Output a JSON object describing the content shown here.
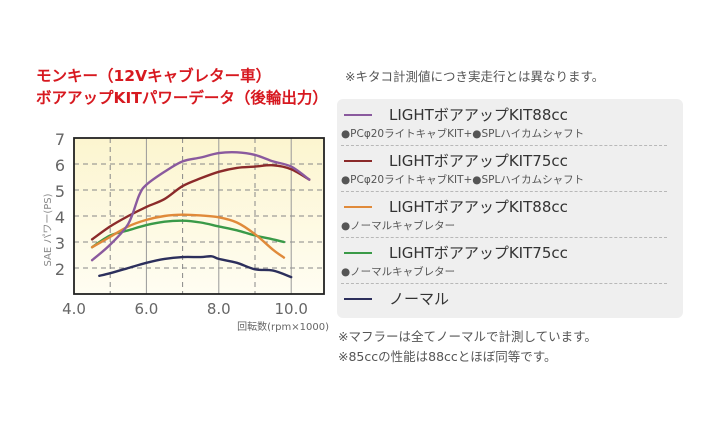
{
  "title": {
    "line1": "モンキー（12Vキャブレター車）",
    "line2": "ボアアップKITパワーデータ（後輪出力）"
  },
  "notes": {
    "top": "※キタコ計測値につき実走行とは異なります。",
    "bottom1": "※マフラーは全てノーマルで計測しています。",
    "bottom2": "※85ccの性能は88ccとほぼ同等です。"
  },
  "legend": [
    {
      "label": "LIGHTボアアップKIT88cc",
      "sub": "●PCφ20ライトキャブKIT+●SPLハイカムシャフト",
      "color": "#8a5a9e"
    },
    {
      "label": "LIGHTボアアップKIT75cc",
      "sub": "●PCφ20ライトキャブKIT+●SPLハイカムシャフト",
      "color": "#8b2a2a"
    },
    {
      "label": "LIGHTボアアップKIT88cc",
      "sub": "●ノーマルキャブレター",
      "color": "#e08a3a"
    },
    {
      "label": "LIGHTボアアップKIT75cc",
      "sub": "●ノーマルキャブレター",
      "color": "#3a9a48"
    },
    {
      "label": "ノーマル",
      "sub": "",
      "color": "#2c2f5c"
    }
  ],
  "chart_data": {
    "type": "line",
    "title": "モンキー（12Vキャブレター車） ボアアップKITパワーデータ（後輪出力）",
    "xlabel": "回転数(rpm×1000)",
    "ylabel": "SAE パワー(PS)",
    "xlim": [
      4.0,
      10.9
    ],
    "ylim": [
      1.0,
      7.0
    ],
    "x_ticks": [
      "4.0",
      "6.0",
      "8.0",
      "10.0"
    ],
    "y_ticks": [
      "2",
      "3",
      "4",
      "5",
      "6",
      "7"
    ],
    "grid": {
      "vertical_solid": [
        6.0,
        8.0,
        10.0
      ],
      "vertical_dashed": [
        5.0,
        7.0,
        9.0
      ],
      "horizontal_dashed": [
        2,
        3,
        4,
        5,
        6
      ]
    },
    "background": "#fdf8da",
    "series": [
      {
        "name": "LIGHTボアアップKIT88cc (PCφ20ライトキャブKIT+SPLハイカムシャフト)",
        "color": "#8a5a9e",
        "x": [
          4.5,
          5.0,
          5.5,
          5.8,
          6.0,
          6.5,
          7.0,
          7.5,
          8.0,
          8.5,
          9.0,
          9.5,
          10.0,
          10.5
        ],
        "y": [
          2.3,
          2.9,
          3.7,
          4.8,
          5.2,
          5.7,
          6.1,
          6.25,
          6.42,
          6.45,
          6.35,
          6.1,
          5.9,
          5.4
        ]
      },
      {
        "name": "LIGHTボアアップKIT75cc (PCφ20ライトキャブKIT+SPLハイカムシャフト)",
        "color": "#8b2a2a",
        "x": [
          4.5,
          5.0,
          5.5,
          6.0,
          6.5,
          7.0,
          7.5,
          8.0,
          8.5,
          9.0,
          9.5,
          10.0,
          10.5
        ],
        "y": [
          3.1,
          3.6,
          4.0,
          4.35,
          4.65,
          5.15,
          5.45,
          5.7,
          5.85,
          5.9,
          5.95,
          5.8,
          5.4
        ]
      },
      {
        "name": "LIGHTボアアップKIT88cc (ノーマルキャブレター)",
        "color": "#e08a3a",
        "x": [
          4.5,
          5.0,
          5.5,
          6.0,
          6.5,
          7.0,
          7.5,
          8.0,
          8.5,
          9.0,
          9.5,
          9.8
        ],
        "y": [
          2.8,
          3.2,
          3.6,
          3.85,
          4.0,
          4.05,
          4.02,
          3.95,
          3.75,
          3.3,
          2.7,
          2.4
        ]
      },
      {
        "name": "LIGHTボアアップKIT75cc (ノーマルキャブレター)",
        "color": "#3a9a48",
        "x": [
          4.5,
          5.0,
          5.5,
          6.0,
          6.5,
          7.0,
          7.5,
          8.0,
          8.5,
          9.0,
          9.5,
          9.8
        ],
        "y": [
          2.8,
          3.25,
          3.45,
          3.65,
          3.78,
          3.82,
          3.75,
          3.6,
          3.45,
          3.25,
          3.1,
          3.0
        ]
      },
      {
        "name": "ノーマル",
        "color": "#2c2f5c",
        "x": [
          4.7,
          5.0,
          5.5,
          6.0,
          6.5,
          7.0,
          7.5,
          7.8,
          8.0,
          8.5,
          9.0,
          9.5,
          10.0
        ],
        "y": [
          1.7,
          1.8,
          2.0,
          2.2,
          2.35,
          2.42,
          2.42,
          2.45,
          2.35,
          2.2,
          1.95,
          1.9,
          1.65
        ]
      }
    ]
  }
}
